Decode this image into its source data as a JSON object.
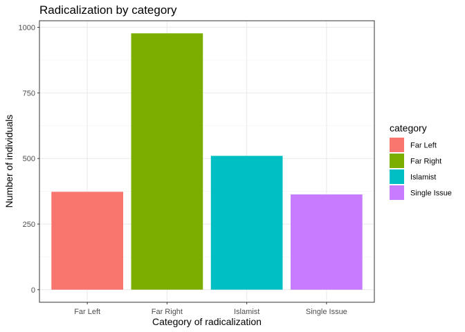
{
  "chart_data": {
    "type": "bar",
    "title": "Radicalization by category",
    "xlabel": "Category of radicalization",
    "ylabel": "Number of individuals",
    "categories": [
      "Far Left",
      "Far Right",
      "Islamist",
      "Single Issue"
    ],
    "values": [
      373,
      977,
      510,
      363
    ],
    "colors": [
      "#F8766D",
      "#7CAE00",
      "#00BFC4",
      "#C77CFF"
    ],
    "ylim": [
      -48,
      1025
    ],
    "yticks": [
      0,
      250,
      500,
      750,
      1000
    ],
    "ytick_labels": [
      "0",
      "250",
      "500",
      "750",
      "1000"
    ],
    "grid": true,
    "legend": {
      "title": "category",
      "position": "right",
      "items": [
        "Far Left",
        "Far Right",
        "Islamist",
        "Single Issue"
      ]
    }
  }
}
